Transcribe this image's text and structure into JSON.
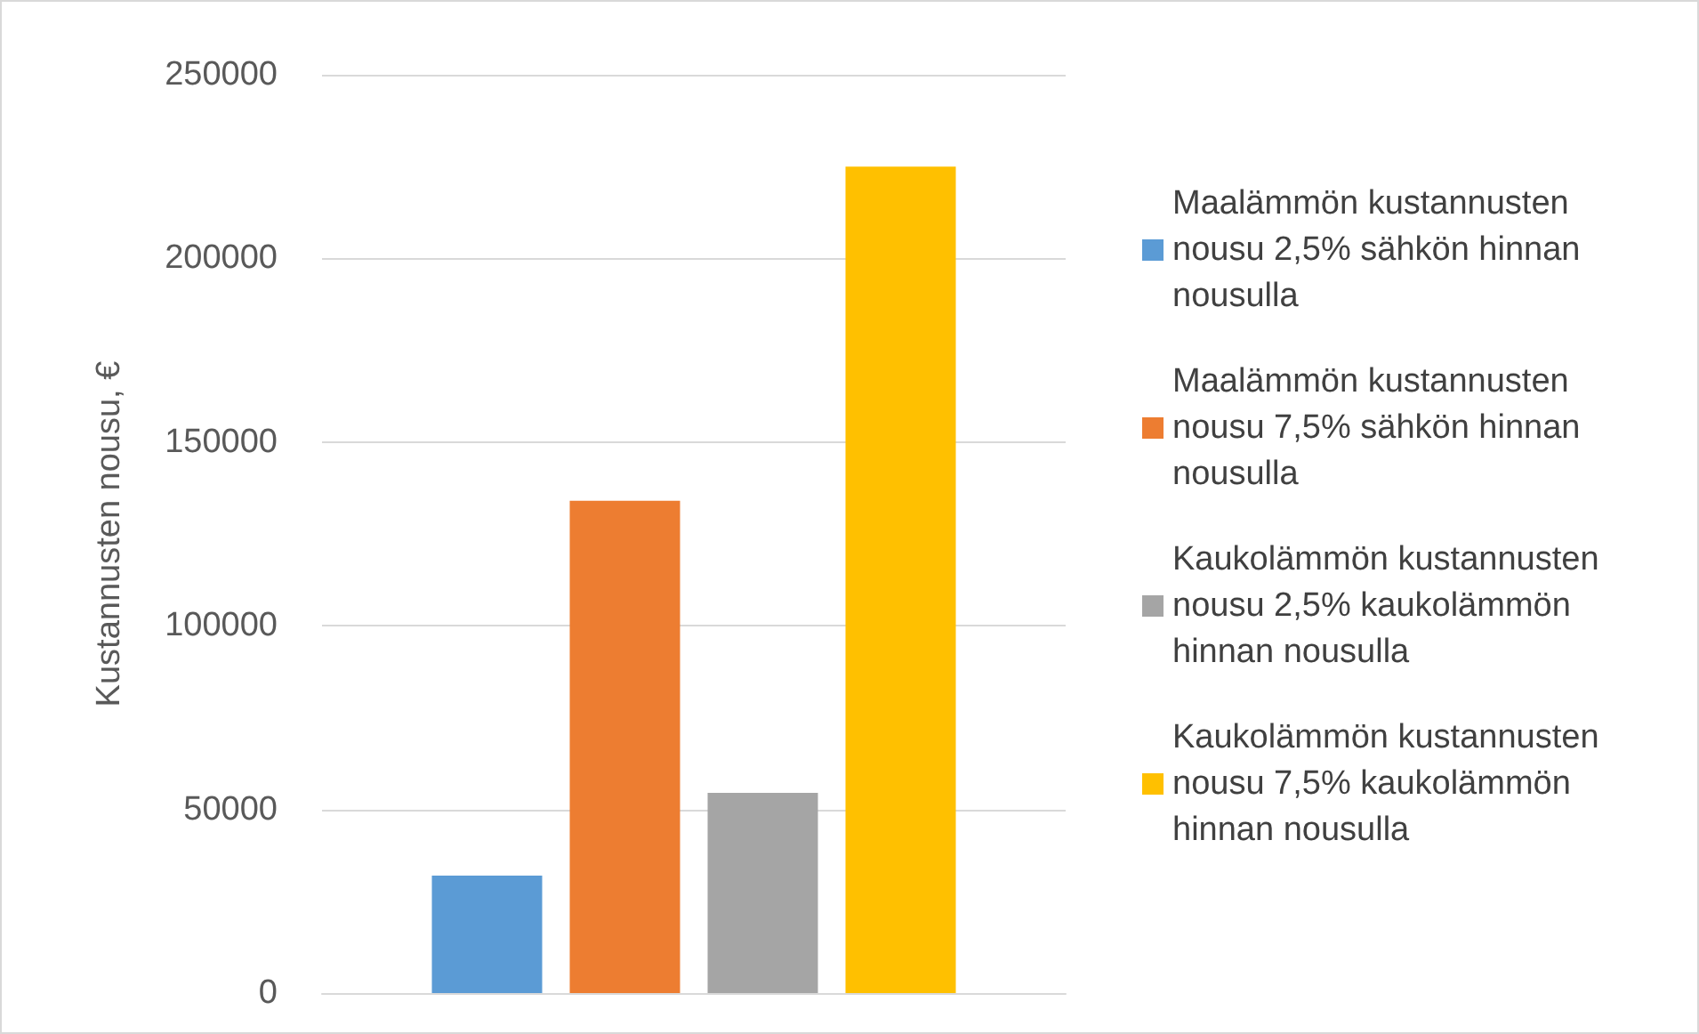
{
  "chart_data": {
    "type": "bar",
    "ylabel": "Kustannusten nousu, €",
    "categories": [
      null
    ],
    "series": [
      {
        "name": "Maalämmön kustannusten nousu 2,5% sähkön hinnan nousulla",
        "color": "#5b9bd5",
        "values": [
          32000
        ]
      },
      {
        "name": "Maalämmön kustannusten nousu 7,5% sähkön hinnan nousulla",
        "color": "#ed7d31",
        "values": [
          134000
        ]
      },
      {
        "name": "Kaukolämmön kustannusten nousu 2,5% kaukolämmön hinnan nousulla",
        "color": "#a5a5a5",
        "values": [
          54500
        ]
      },
      {
        "name": "Kaukolämmön kustannusten nousu 7,5% kaukolämmön hinnan nousulla",
        "color": "#ffc000",
        "values": [
          225000
        ]
      }
    ],
    "ylim": [
      0,
      250000
    ],
    "yticks": [
      0,
      50000,
      100000,
      150000,
      200000,
      250000
    ],
    "grid": "y",
    "legend": "right"
  }
}
